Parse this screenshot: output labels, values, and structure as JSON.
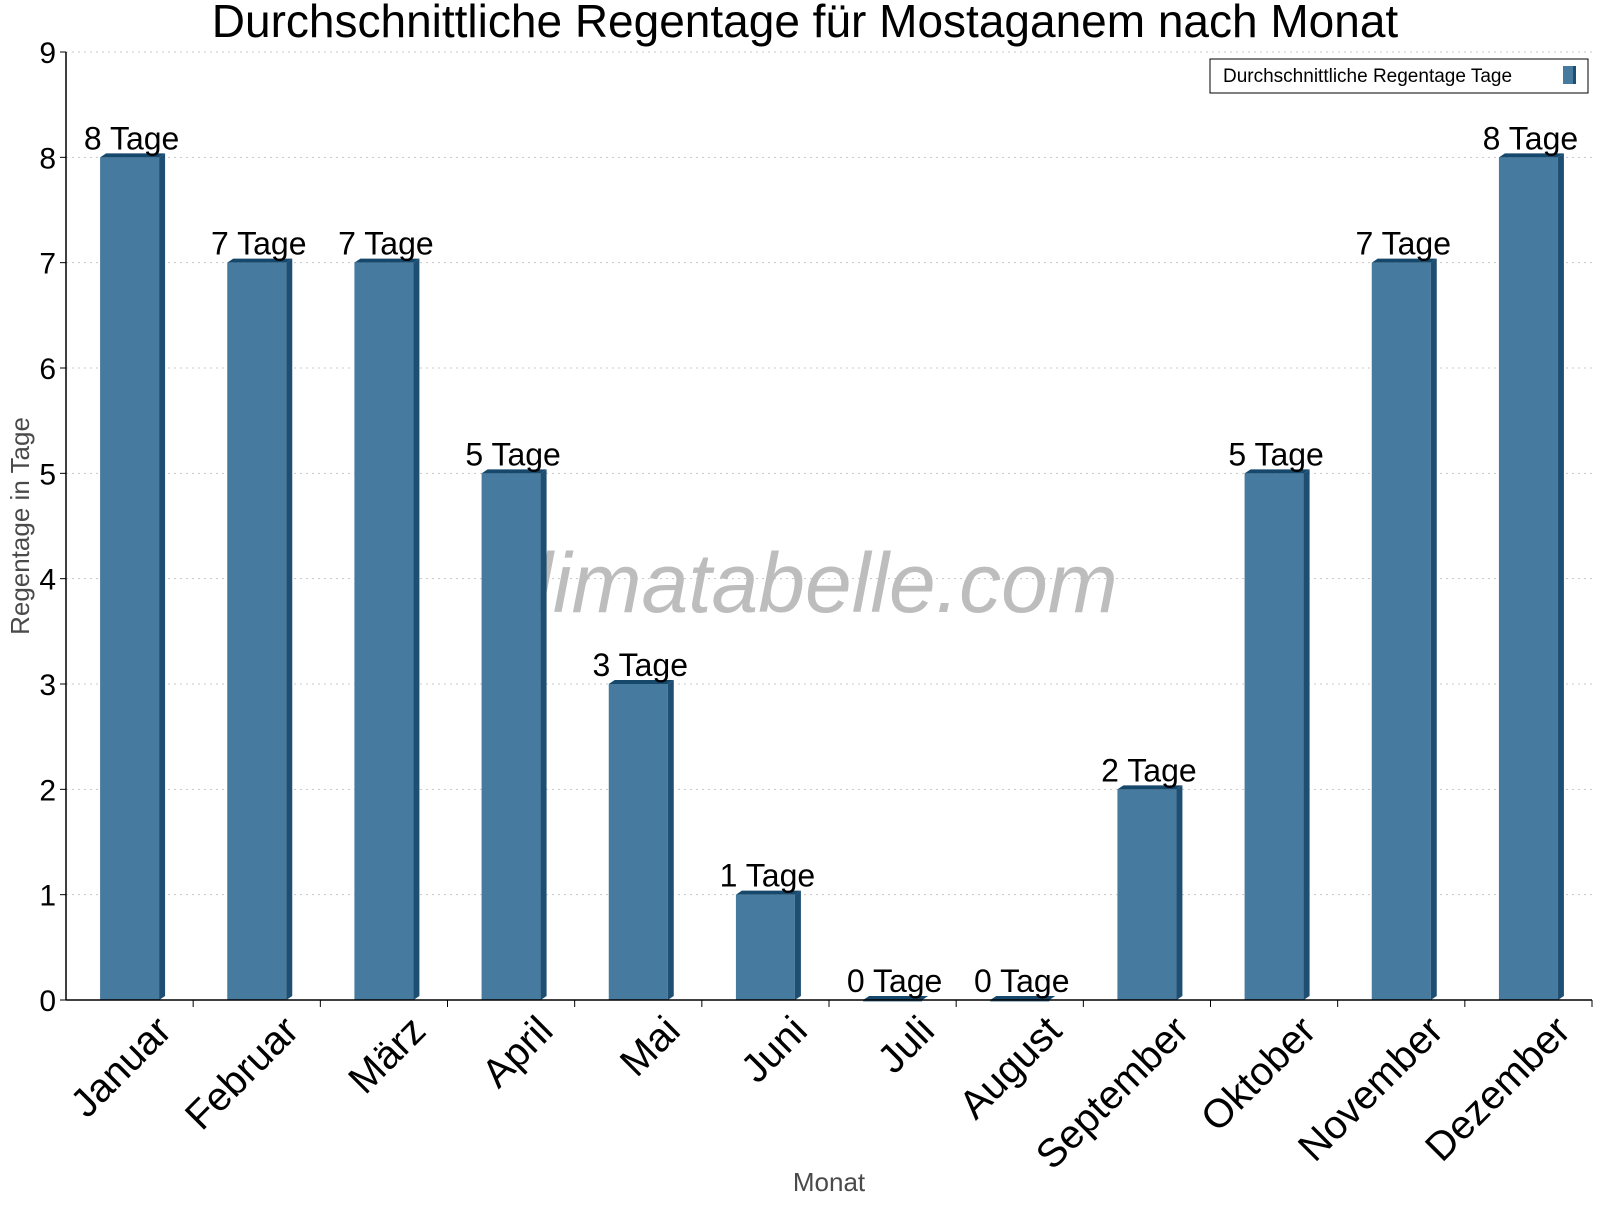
{
  "chart_data": {
    "type": "bar",
    "title": "Durchschnittliche Regentage für Mostaganem nach Monat",
    "xlabel": "Monat",
    "ylabel": "Regentage in Tage",
    "categories": [
      "Januar",
      "Februar",
      "März",
      "April",
      "Mai",
      "Juni",
      "Juli",
      "August",
      "September",
      "Oktober",
      "November",
      "Dezember"
    ],
    "series": [
      {
        "name": "Durchschnittliche Regentage Tage",
        "values": [
          8,
          7,
          7,
          5,
          3,
          1,
          0,
          0,
          2,
          5,
          7,
          8
        ],
        "data_labels": [
          "8 Tage",
          "7 Tage",
          "7 Tage",
          "5 Tage",
          "3 Tage",
          "1 Tage",
          "0 Tage",
          "0 Tage",
          "2 Tage",
          "5 Tage",
          "7 Tage",
          "8 Tage"
        ]
      }
    ],
    "ylim": [
      0,
      9
    ],
    "yticks": [
      "0",
      "1",
      "2",
      "3",
      "4",
      "5",
      "6",
      "7",
      "8",
      "9"
    ],
    "grid": true,
    "legend_position": "top-right",
    "watermark": "klimatabelle.com",
    "colors": {
      "bar_front": "#467a9e",
      "bar_side": "#1e4f73",
      "bar_top": "#16486c",
      "axis": "#000000",
      "grid": "#c8c8c8",
      "axis_title": "#4a4a4a",
      "watermark": "#bdbdbd"
    }
  }
}
